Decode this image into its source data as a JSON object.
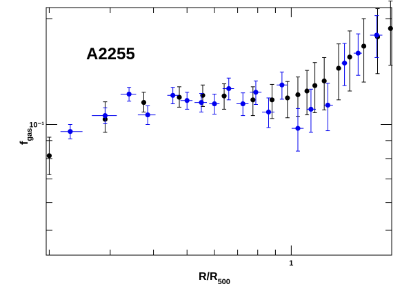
{
  "chart_data": {
    "type": "scatter",
    "annotation": "A2255",
    "xlabel_main": "R/R",
    "xlabel_sub": "500",
    "ylabel_main": "f",
    "ylabel_sub": "gas",
    "x_scale": "log",
    "y_scale": "log",
    "xlim": [
      0.196,
      1.95
    ],
    "ylim": [
      0.0425,
      0.215
    ],
    "x_tick_labels": [
      {
        "value": 1,
        "text": "1"
      }
    ],
    "y_tick_labels": [
      {
        "value": 0.1,
        "text": "10⁻¹"
      }
    ],
    "grid": false,
    "legend": "none",
    "series": [
      {
        "color": "#000000",
        "points": [
          {
            "x": 0.2,
            "y": 0.0815,
            "xerr": [
              0.003,
              0.003
            ],
            "yerr": [
              0.0095,
              0.0105
            ]
          },
          {
            "x": 0.29,
            "y": 0.1035,
            "xerr": [
              0,
              0
            ],
            "yerr": [
              0.0085,
              0.0125
            ]
          },
          {
            "x": 0.375,
            "y": 0.1155,
            "xerr": [
              0,
              0
            ],
            "yerr": [
              0.007,
              0.008
            ]
          },
          {
            "x": 0.475,
            "y": 0.1195,
            "xerr": [
              0,
              0
            ],
            "yerr": [
              0.0075,
              0.0085
            ]
          },
          {
            "x": 0.555,
            "y": 0.121,
            "xerr": [
              0,
              0
            ],
            "yerr": [
              0.0085,
              0.0085
            ]
          },
          {
            "x": 0.64,
            "y": 0.1205,
            "xerr": [
              0,
              0
            ],
            "yerr": [
              0.01,
              0.01
            ]
          },
          {
            "x": 0.775,
            "y": 0.1175,
            "xerr": [
              0,
              0
            ],
            "yerr": [
              0.0115,
              0.0105
            ]
          },
          {
            "x": 0.88,
            "y": 0.1175,
            "xerr": [
              0,
              0
            ],
            "yerr": [
              0.0135,
              0.0125
            ]
          },
          {
            "x": 0.975,
            "y": 0.119,
            "xerr": [
              0,
              0
            ],
            "yerr": [
              0.0145,
              0.0135
            ]
          },
          {
            "x": 1.045,
            "y": 0.1215,
            "xerr": [
              0,
              0
            ],
            "yerr": [
              0.016,
              0.015
            ]
          },
          {
            "x": 1.11,
            "y": 0.1245,
            "xerr": [
              0,
              0
            ],
            "yerr": [
              0.018,
              0.018
            ]
          },
          {
            "x": 1.17,
            "y": 0.129,
            "xerr": [
              0,
              0
            ],
            "yerr": [
              0.021,
              0.021
            ]
          },
          {
            "x": 1.245,
            "y": 0.133,
            "xerr": [
              0,
              0
            ],
            "yerr": [
              0.023,
              0.022
            ]
          },
          {
            "x": 1.37,
            "y": 0.1445,
            "xerr": [
              0,
              0
            ],
            "yerr": [
              0.027,
              0.025
            ]
          },
          {
            "x": 1.475,
            "y": 0.1555,
            "xerr": [
              0,
              0
            ],
            "yerr": [
              0.031,
              0.029
            ]
          },
          {
            "x": 1.62,
            "y": 0.167,
            "xerr": [
              0,
              0
            ],
            "yerr": [
              0.035,
              0.033
            ]
          },
          {
            "x": 1.775,
            "y": 0.1775,
            "xerr": [
              0,
              0
            ],
            "yerr": [
              0.038,
              0.036
            ]
          },
          {
            "x": 1.935,
            "y": 0.1875,
            "xerr": [
              0,
              0
            ],
            "yerr": [
              0.04,
              0.037
            ]
          }
        ]
      },
      {
        "color": "#0000ee",
        "points": [
          {
            "x": 0.23,
            "y": 0.0955,
            "xerr": [
              0.0145,
              0.0195
            ],
            "yerr": [
              0.0045,
              0.0045
            ]
          },
          {
            "x": 0.29,
            "y": 0.106,
            "xerr": [
              0.0245,
              0.0235
            ],
            "yerr": [
              0.0055,
              0.0055
            ]
          },
          {
            "x": 0.34,
            "y": 0.122,
            "xerr": [
              0.0185,
              0.0165
            ],
            "yerr": [
              0.0055,
              0.0055
            ]
          },
          {
            "x": 0.385,
            "y": 0.1065,
            "xerr": [
              0.0245,
              0.0205
            ],
            "yerr": [
              0.0065,
              0.0065
            ]
          },
          {
            "x": 0.455,
            "y": 0.121,
            "xerr": [
              0.0165,
              0.0175
            ],
            "yerr": [
              0.0065,
              0.0065
            ]
          },
          {
            "x": 0.5,
            "y": 0.117,
            "xerr": [
              0.0215,
              0.0185
            ],
            "yerr": [
              0.0065,
              0.0065
            ]
          },
          {
            "x": 0.55,
            "y": 0.1155,
            "xerr": [
              0.0245,
              0.0205
            ],
            "yerr": [
              0.007,
              0.007
            ]
          },
          {
            "x": 0.6,
            "y": 0.1145,
            "xerr": [
              0.0205,
              0.0205
            ],
            "yerr": [
              0.0075,
              0.0075
            ]
          },
          {
            "x": 0.66,
            "y": 0.1265,
            "xerr": [
              0.0265,
              0.0235
            ],
            "yerr": [
              0.009,
              0.009
            ]
          },
          {
            "x": 0.725,
            "y": 0.1145,
            "xerr": [
              0.0305,
              0.0275
            ],
            "yerr": [
              0.0085,
              0.0085
            ]
          },
          {
            "x": 0.79,
            "y": 0.1235,
            "xerr": [
              0.0305,
              0.0305
            ],
            "yerr": [
              0.0095,
              0.0095
            ]
          },
          {
            "x": 0.86,
            "y": 0.1085,
            "xerr": [
              0.0365,
              0.0345
            ],
            "yerr": [
              0.0105,
              0.0105
            ]
          },
          {
            "x": 0.94,
            "y": 0.1295,
            "xerr": [
              0.0325,
              0.0365
            ],
            "yerr": [
              0.0115,
              0.0115
            ]
          },
          {
            "x": 1.045,
            "y": 0.0975,
            "xerr": [
              0.0425,
              0.0405
            ],
            "yerr": [
              0.0135,
              0.0135
            ]
          },
          {
            "x": 1.14,
            "y": 0.1105,
            "xerr": [
              0.0325,
              0.0375
            ],
            "yerr": [
              0.0155,
              0.0155
            ]
          },
          {
            "x": 1.275,
            "y": 0.1135,
            "xerr": [
              0.0285,
              0.0445
            ],
            "yerr": [
              0.0175,
              0.0175
            ]
          },
          {
            "x": 1.425,
            "y": 0.1495,
            "xerr": [
              0.0275,
              0.0255
            ],
            "yerr": [
              0.0205,
              0.0205
            ]
          },
          {
            "x": 1.56,
            "y": 0.1595,
            "xerr": [
              0.0455,
              0.0395
            ],
            "yerr": [
              0.0215,
              0.0215
            ]
          },
          {
            "x": 1.765,
            "y": 0.1795,
            "xerr": [
              0.0755,
              0.0675
            ],
            "yerr": [
              0.0245,
              0.0245
            ]
          }
        ]
      }
    ]
  }
}
